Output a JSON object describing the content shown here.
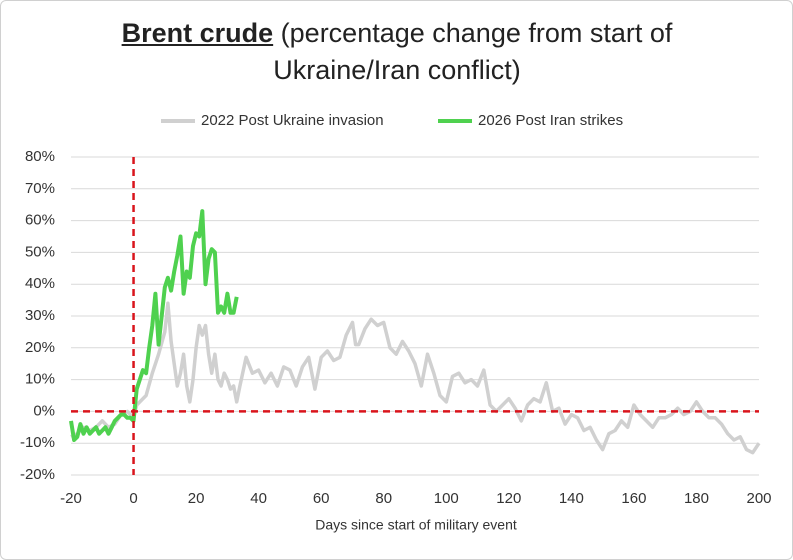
{
  "chart_data": {
    "type": "line",
    "title": "Brent crude",
    "subtitle": "(percentage change from start of Ukraine/Iran conflict)",
    "x_label": "Days since start of military event",
    "xlim": [
      -20,
      200
    ],
    "xticks": [
      -20,
      0,
      20,
      40,
      60,
      80,
      100,
      120,
      140,
      160,
      180,
      200
    ],
    "ylim": [
      -20,
      80
    ],
    "yticks": [
      {
        "value": -20,
        "label": "-20%"
      },
      {
        "value": -10,
        "label": "-10%"
      },
      {
        "value": 0,
        "label": "0%"
      },
      {
        "value": 10,
        "label": "10%"
      },
      {
        "value": 20,
        "label": "20%"
      },
      {
        "value": 30,
        "label": "30%"
      },
      {
        "value": 40,
        "label": "40%"
      },
      {
        "value": 50,
        "label": "50%"
      },
      {
        "value": 60,
        "label": "60%"
      },
      {
        "value": 70,
        "label": "70%"
      },
      {
        "value": 80,
        "label": "80%"
      }
    ],
    "grid": true,
    "legend": "top",
    "reference_lines": {
      "x": 0,
      "y": 0,
      "color": "#d9141c"
    },
    "series": [
      {
        "name": "2022 Post Ukraine invasion",
        "color": "#d0d0d0",
        "x": [
          -20,
          -18,
          -16,
          -14,
          -12,
          -10,
          -8,
          -6,
          -4,
          -2,
          0,
          1,
          2,
          4,
          6,
          8,
          10,
          11,
          12,
          13,
          14,
          15,
          16,
          17,
          18,
          19,
          20,
          21,
          22,
          23,
          24,
          25,
          26,
          27,
          28,
          29,
          30,
          31,
          32,
          33,
          34,
          36,
          38,
          40,
          42,
          44,
          46,
          48,
          50,
          52,
          54,
          56,
          58,
          60,
          62,
          64,
          66,
          68,
          70,
          71,
          72,
          74,
          76,
          78,
          80,
          82,
          84,
          86,
          88,
          90,
          92,
          94,
          96,
          98,
          100,
          102,
          104,
          106,
          108,
          110,
          112,
          114,
          116,
          118,
          120,
          122,
          124,
          126,
          128,
          130,
          132,
          134,
          136,
          138,
          140,
          142,
          144,
          146,
          148,
          150,
          152,
          154,
          156,
          158,
          160,
          162,
          164,
          166,
          168,
          170,
          172,
          174,
          176,
          178,
          180,
          182,
          184,
          186,
          188,
          190,
          192,
          194,
          196,
          198,
          200
        ],
        "values": [
          -8,
          -7,
          -5,
          -6,
          -5,
          -3,
          -5,
          -4,
          -1,
          0,
          -2,
          2,
          3,
          5,
          12,
          18,
          25,
          34,
          22,
          15,
          8,
          12,
          18,
          8,
          3,
          10,
          20,
          27,
          24,
          27,
          18,
          12,
          18,
          10,
          8,
          12,
          10,
          7,
          8,
          3,
          8,
          17,
          12,
          13,
          9,
          12,
          8,
          14,
          13,
          8,
          14,
          17,
          7,
          17,
          19,
          16,
          17,
          24,
          28,
          21,
          21,
          26,
          29,
          27,
          28,
          20,
          18,
          22,
          19,
          15,
          8,
          18,
          12,
          5,
          3,
          11,
          12,
          9,
          10,
          8,
          13,
          2,
          0,
          2,
          4,
          1,
          -3,
          2,
          4,
          3,
          9,
          0,
          1,
          -4,
          -1,
          -2,
          -6,
          -5,
          -9,
          -12,
          -7,
          -6,
          -3,
          -5,
          2,
          -1,
          -3,
          -5,
          -2,
          -2,
          -1,
          1,
          -1,
          0,
          3,
          0,
          -2,
          -2,
          -4,
          -7,
          -9,
          -8,
          -12,
          -13,
          -10
        ]
      },
      {
        "name": "2026 Post Iran strikes",
        "color": "#4fd14f",
        "x": [
          -20,
          -19,
          -18,
          -17,
          -16,
          -15,
          -14,
          -13,
          -12,
          -11,
          -10,
          -9,
          -8,
          -7,
          -6,
          -5,
          -4,
          -3,
          -2,
          -1,
          0,
          1,
          2,
          3,
          4,
          5,
          6,
          7,
          8,
          9,
          10,
          11,
          12,
          13,
          14,
          15,
          16,
          17,
          18,
          19,
          20,
          21,
          22,
          23,
          24,
          25,
          26,
          27,
          28,
          29,
          30,
          31,
          32,
          33
        ],
        "values": [
          -3,
          -9,
          -8,
          -4,
          -7,
          -5,
          -7,
          -6,
          -5,
          -7,
          -6,
          -5,
          -7,
          -5,
          -3,
          -2,
          -1,
          -1,
          -2,
          -2,
          -3,
          7,
          10,
          13,
          12,
          20,
          27,
          37,
          21,
          30,
          39,
          42,
          38,
          44,
          49,
          55,
          37,
          44,
          42,
          52,
          56,
          55,
          63,
          40,
          48,
          51,
          50,
          31,
          33,
          31,
          37,
          31,
          31,
          36
        ]
      }
    ]
  }
}
